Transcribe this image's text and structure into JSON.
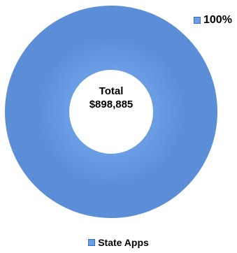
{
  "chart_data": {
    "type": "pie",
    "variant": "donut",
    "categories": [
      "State Apps"
    ],
    "values": [
      100
    ],
    "colors": [
      "#6a9de3"
    ],
    "data_labels": [
      "100%"
    ],
    "center_text": [
      "Total",
      "$898,885"
    ],
    "legend": {
      "entries": [
        "State Apps"
      ],
      "placement": "bottom"
    }
  }
}
